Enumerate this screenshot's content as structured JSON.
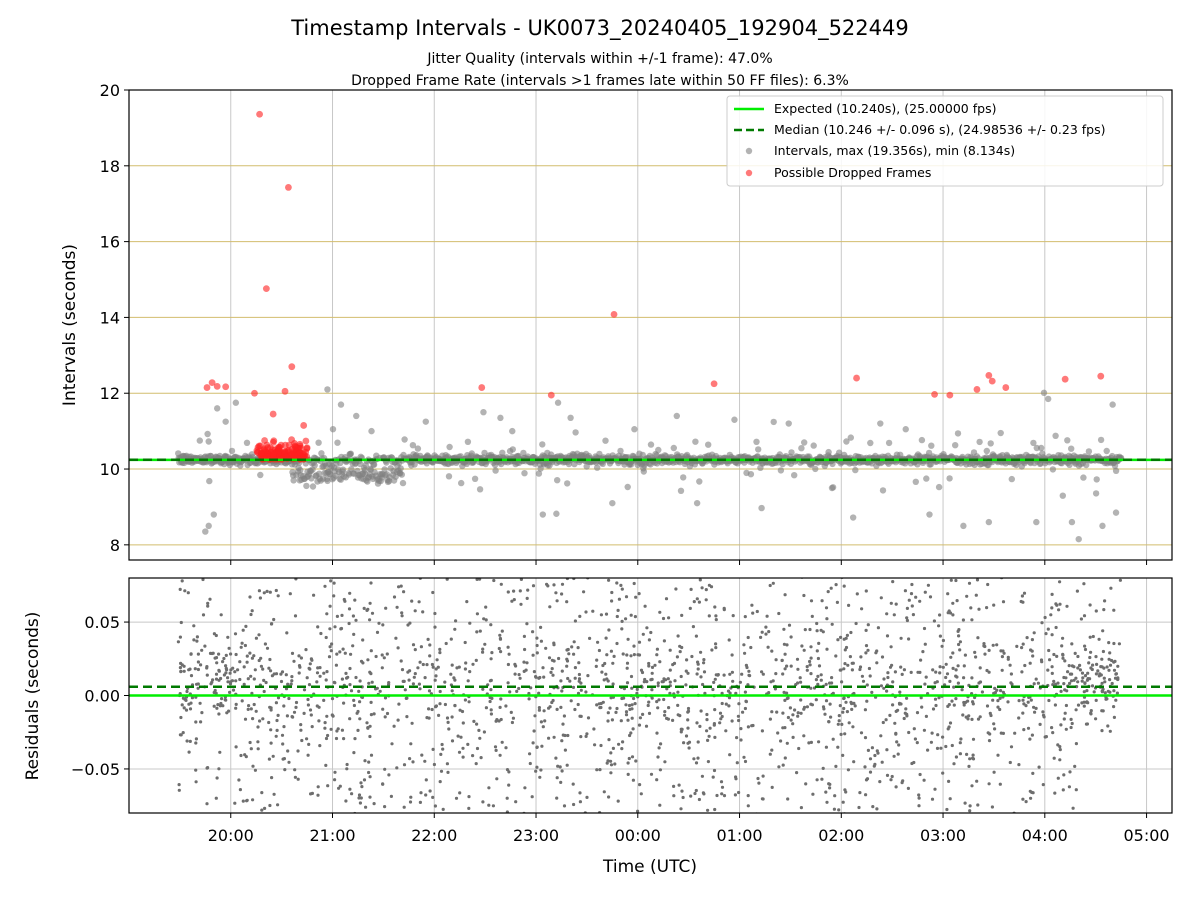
{
  "title": "Timestamp Intervals - UK0073_20240405_192904_522449",
  "subtitle_1": "Jitter Quality (intervals within +/-1 frame): 47.0%",
  "subtitle_2": "Dropped Frame Rate (intervals >1 frames late within 50 FF files): 6.3%",
  "colors": {
    "expected": "#00ee00",
    "median": "#007a00",
    "intervals": "#808080",
    "dropped": "#ff2020",
    "hgrid_top": "#d2bd6e",
    "grid": "#c8c8c8"
  },
  "chart_data": [
    {
      "type": "scatter",
      "panel": "intervals",
      "ylabel": "Intervals (seconds)",
      "ylim": [
        7.6,
        20
      ],
      "yticks": [
        "8",
        "10",
        "12",
        "14",
        "16",
        "18",
        "20"
      ],
      "xlim_hours": [
        19.0,
        29.25
      ],
      "x_time_range": [
        "19:29",
        "04:45"
      ],
      "grid": "on",
      "legend_position": "top-right",
      "legend": [
        {
          "label": "Expected (10.240s), (25.00000 fps)",
          "style": "solid-line"
        },
        {
          "label": "Median (10.246 +/- 0.096 s), (24.98536 +/- 0.23 fps)",
          "style": "dashed-line"
        },
        {
          "label": "Intervals, max (19.356s), min (8.134s)",
          "style": "grey-dot"
        },
        {
          "label": "Possible Dropped Frames",
          "style": "red-dot"
        }
      ],
      "expected_line": 10.24,
      "median_line": 10.246,
      "series": [
        {
          "name": "Possible Dropped Frames",
          "points": [
            [
              "19:46",
              12.15
            ],
            [
              "19:49",
              12.28
            ],
            [
              "19:52",
              12.18
            ],
            [
              "19:57",
              12.17
            ],
            [
              "20:14",
              12.0
            ],
            [
              "20:17",
              19.36
            ],
            [
              "20:21",
              14.76
            ],
            [
              "20:25",
              11.45
            ],
            [
              "20:32",
              12.05
            ],
            [
              "20:34",
              17.43
            ],
            [
              "20:36",
              12.7
            ],
            [
              "20:43",
              11.15
            ],
            [
              "23:09",
              11.95
            ],
            [
              "22:28",
              12.15
            ],
            [
              "23:46",
              14.08
            ],
            [
              "00:45",
              12.25
            ],
            [
              "02:09",
              12.4
            ],
            [
              "02:55",
              11.97
            ],
            [
              "03:04",
              11.95
            ],
            [
              "03:20",
              12.1
            ],
            [
              "03:27",
              12.47
            ],
            [
              "03:29",
              12.32
            ],
            [
              "03:37",
              12.15
            ],
            [
              "04:12",
              12.37
            ],
            [
              "04:33",
              12.45
            ]
          ]
        },
        {
          "name": "Intervals outliers",
          "points": [
            [
              "19:45",
              8.35
            ],
            [
              "19:47",
              8.5
            ],
            [
              "19:50",
              8.8
            ],
            [
              "19:52",
              11.6
            ],
            [
              "19:57",
              11.25
            ],
            [
              "20:03",
              11.75
            ],
            [
              "20:57",
              12.1
            ],
            [
              "21:05",
              11.7
            ],
            [
              "21:14",
              11.4
            ],
            [
              "21:23",
              11.0
            ],
            [
              "21:55",
              11.25
            ],
            [
              "22:29",
              11.5
            ],
            [
              "22:39",
              11.35
            ],
            [
              "22:46",
              11.0
            ],
            [
              "23:04",
              8.8
            ],
            [
              "23:12",
              8.82
            ],
            [
              "23:13",
              11.75
            ],
            [
              "23:45",
              9.1
            ],
            [
              "23:58",
              11.05
            ],
            [
              "00:23",
              11.4
            ],
            [
              "00:35",
              9.1
            ],
            [
              "00:57",
              11.3
            ],
            [
              "01:13",
              8.97
            ],
            [
              "01:29",
              11.2
            ],
            [
              "02:07",
              8.72
            ],
            [
              "02:23",
              11.2
            ],
            [
              "02:38",
              11.05
            ],
            [
              "02:52",
              8.8
            ],
            [
              "03:12",
              8.5
            ],
            [
              "03:27",
              8.6
            ],
            [
              "03:34",
              10.95
            ],
            [
              "03:55",
              8.6
            ],
            [
              "04:02",
              11.85
            ],
            [
              "04:16",
              8.6
            ],
            [
              "04:20",
              8.15
            ],
            [
              "04:34",
              8.5
            ],
            [
              "04:40",
              11.7
            ],
            [
              "04:42",
              8.85
            ]
          ]
        }
      ]
    },
    {
      "type": "scatter",
      "panel": "residuals",
      "ylabel": "Residuals (seconds)",
      "xlabel": "Time (UTC)",
      "ylim": [
        -0.08,
        0.08
      ],
      "yticks": [
        "−0.05",
        "0.00",
        "0.05"
      ],
      "xticks": [
        "20:00",
        "21:00",
        "22:00",
        "23:00",
        "00:00",
        "01:00",
        "02:00",
        "03:00",
        "04:00",
        "05:00"
      ],
      "expected_line": 0.0,
      "median_line": 0.006,
      "grid": "on"
    }
  ]
}
